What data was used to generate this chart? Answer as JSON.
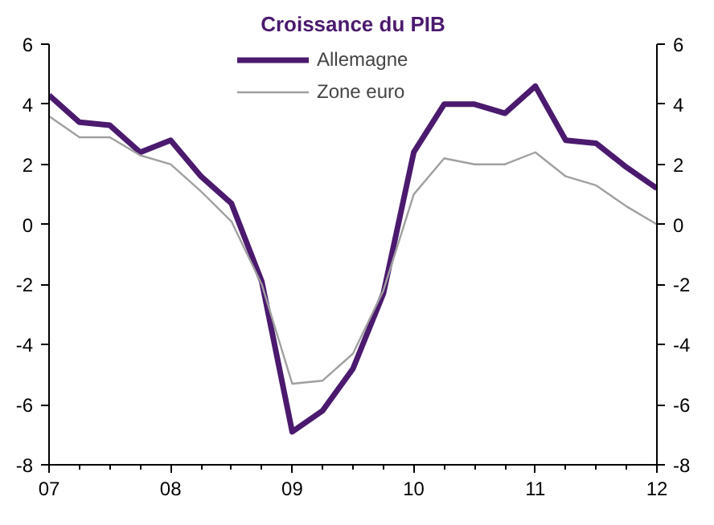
{
  "chart_data": {
    "type": "line",
    "title": "Croissance du PIB",
    "x": [
      2007,
      2007.25,
      2007.5,
      2007.75,
      2008,
      2008.25,
      2008.5,
      2008.75,
      2009,
      2009.25,
      2009.5,
      2009.75,
      2010,
      2010.25,
      2010.5,
      2010.75,
      2011,
      2011.25,
      2011.5,
      2011.75,
      2012
    ],
    "series": [
      {
        "name": "Allemagne",
        "color": "#4b1a6e",
        "values": [
          4.3,
          3.4,
          3.3,
          2.4,
          2.8,
          1.6,
          0.7,
          -1.9,
          -6.9,
          -6.2,
          -4.8,
          -2.3,
          2.4,
          4.0,
          4.0,
          3.7,
          4.6,
          2.8,
          2.7,
          1.9,
          1.2
        ]
      },
      {
        "name": "Zone euro",
        "color": "#a0a0a0",
        "values": [
          3.6,
          2.9,
          2.9,
          2.3,
          2.0,
          1.1,
          0.1,
          -2.0,
          -5.3,
          -5.2,
          -4.3,
          -2.2,
          1.0,
          2.2,
          2.0,
          2.0,
          2.4,
          1.6,
          1.3,
          0.6,
          0.0
        ]
      }
    ],
    "xlim": [
      2007,
      2012
    ],
    "xticks": [
      {
        "value": 2007,
        "label": "07"
      },
      {
        "value": 2008,
        "label": "08"
      },
      {
        "value": 2009,
        "label": "09"
      },
      {
        "value": 2010,
        "label": "10"
      },
      {
        "value": 2011,
        "label": "11"
      },
      {
        "value": 2012,
        "label": "12"
      }
    ],
    "ylim": [
      -8,
      6
    ],
    "yticks": [
      -8,
      -6,
      -4,
      -2,
      0,
      2,
      4,
      6
    ],
    "y2lim": [
      -8,
      6
    ],
    "y2ticks": [
      -8,
      -6,
      -4,
      -2,
      0,
      2,
      4,
      6
    ],
    "legend": "top",
    "grid": false,
    "marker": "none",
    "line_style": "solid"
  }
}
